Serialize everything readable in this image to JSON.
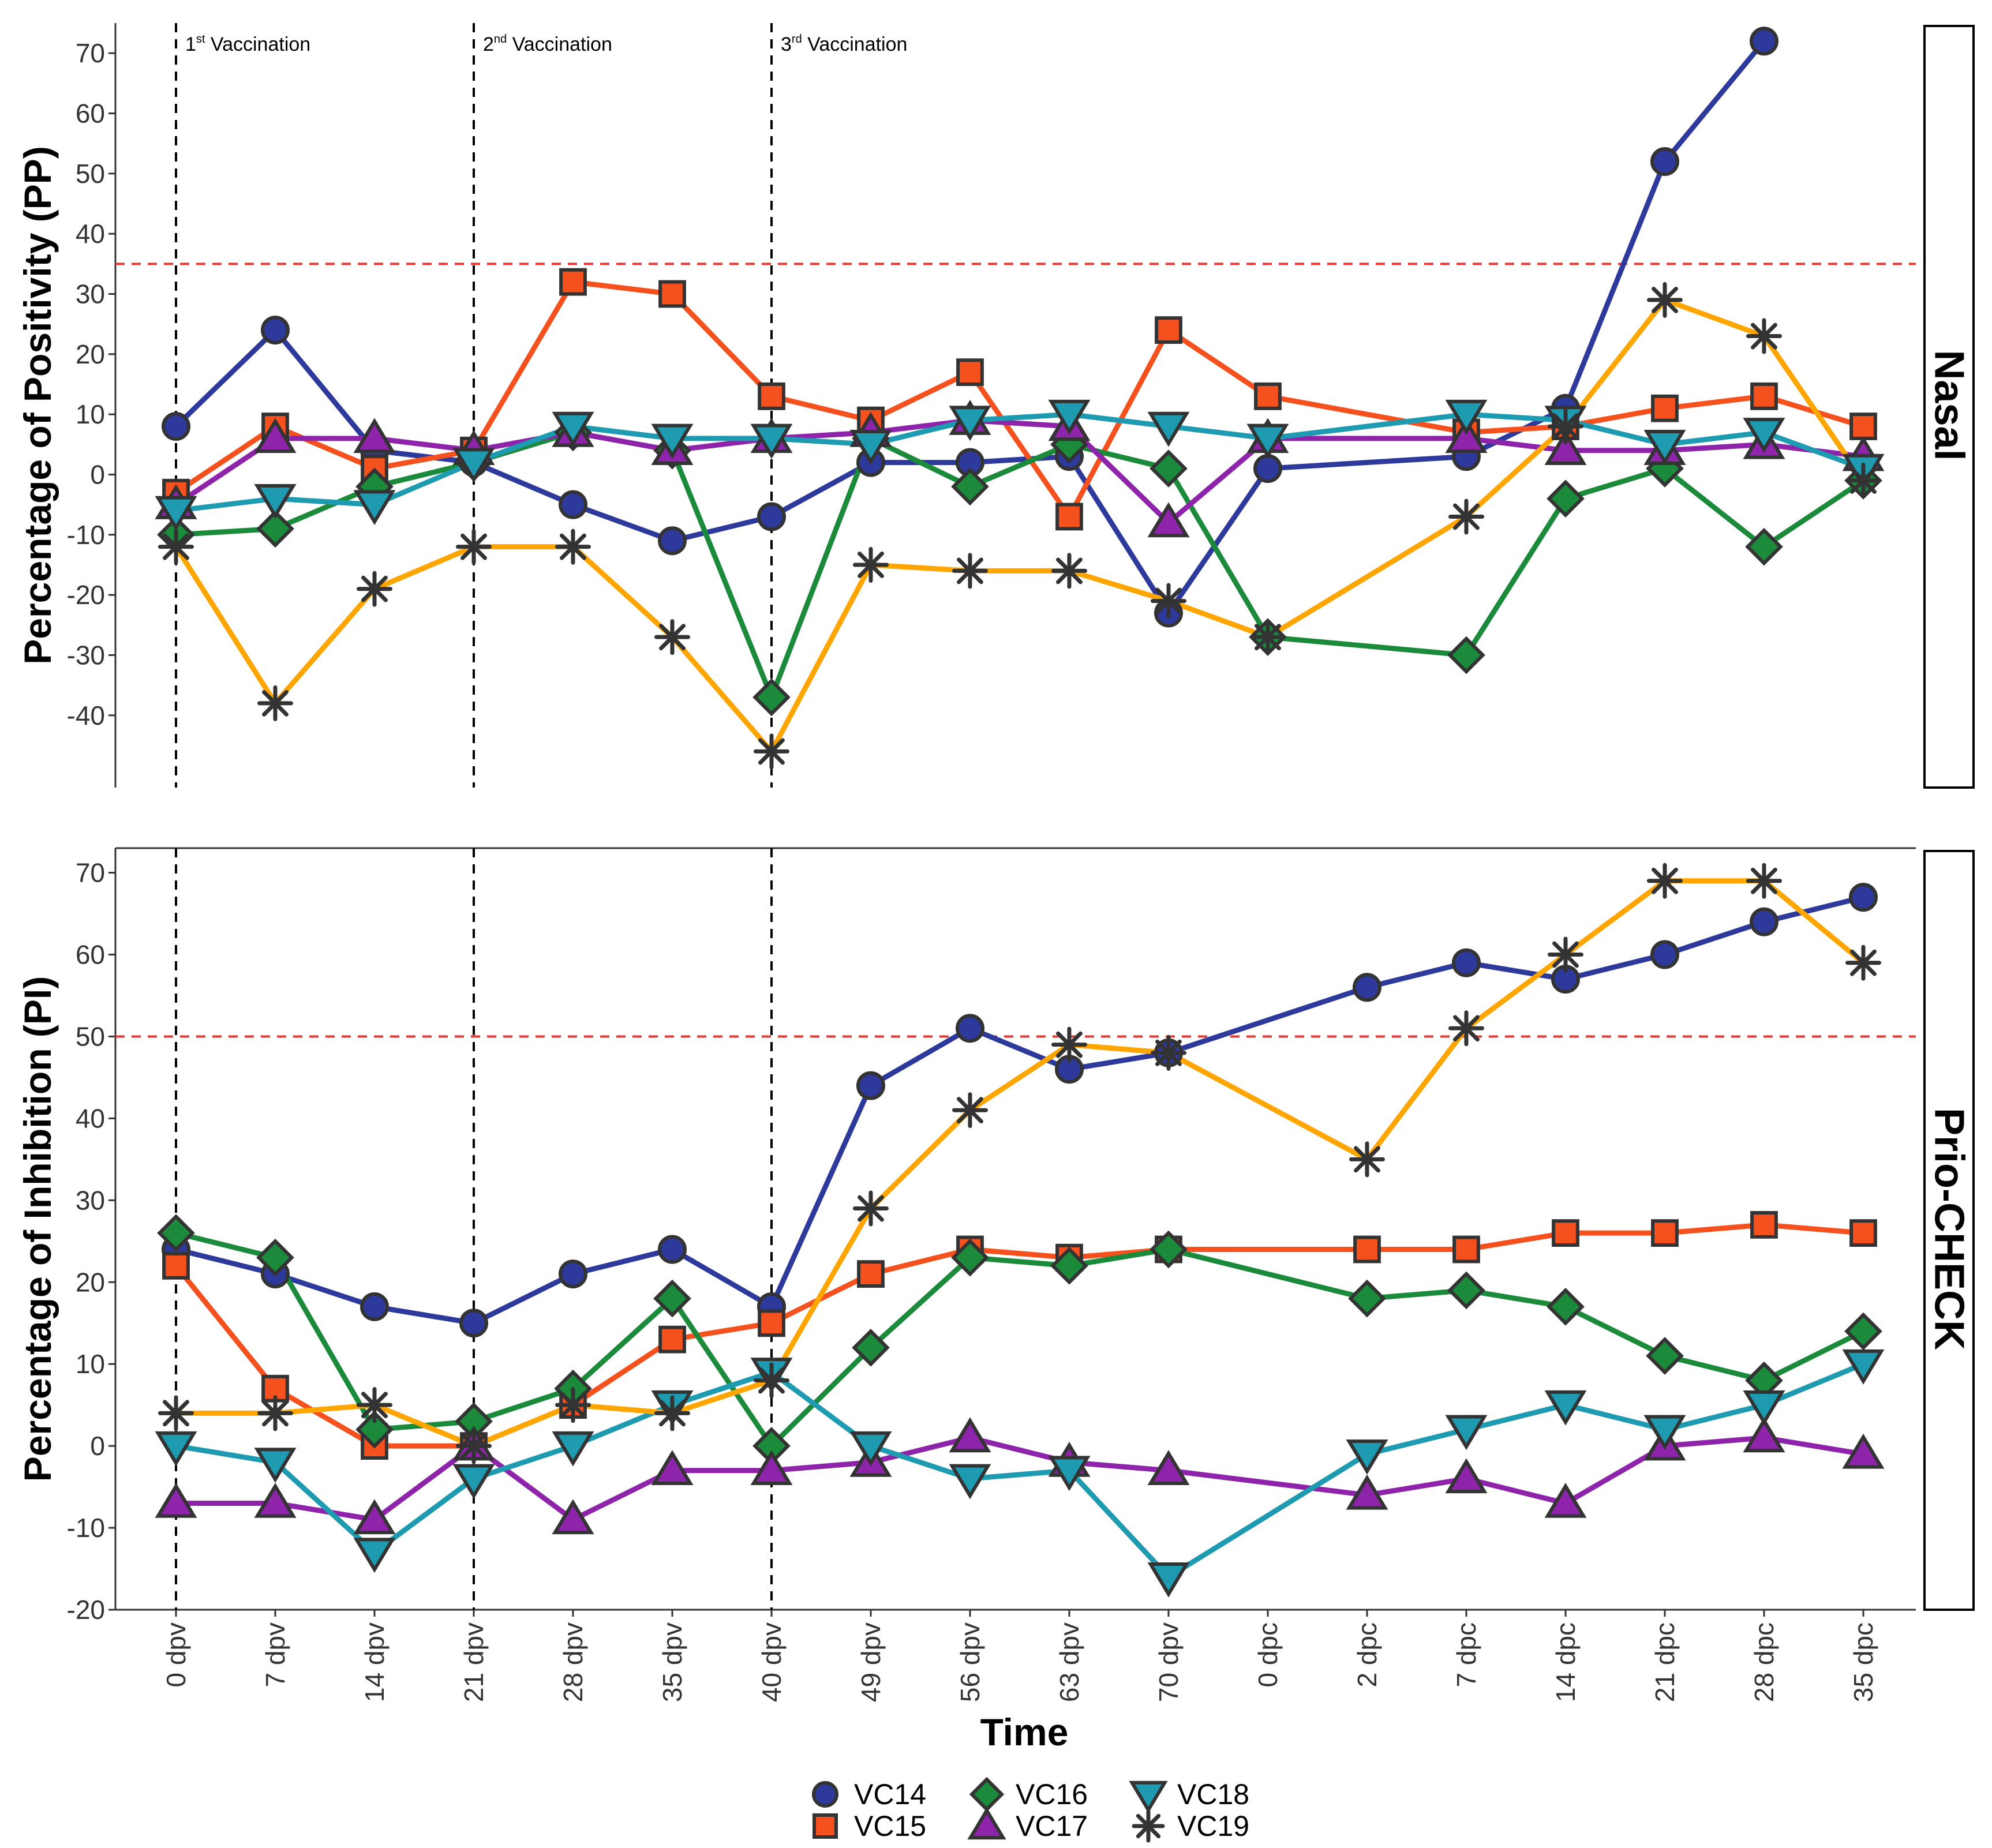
{
  "chart_data": {
    "type": "line",
    "xlabel": "Time",
    "x": [
      "0 dpv",
      "7 dpv",
      "14 dpv",
      "21 dpv",
      "28 dpv",
      "35 dpv",
      "40 dpv",
      "49 dpv",
      "56 dpv",
      "63 dpv",
      "70 dpv",
      "0 dpc",
      "2 dpc",
      "7 dpc",
      "14 dpc",
      "21 dpc",
      "28 dpc",
      "35 dpc"
    ],
    "vaccinations": [
      {
        "index": 0,
        "label": "1st Vaccination",
        "base": "1",
        "sup": "st",
        "rest": " Vaccination"
      },
      {
        "index": 3,
        "label": "2nd Vaccination",
        "base": "2",
        "sup": "nd",
        "rest": " Vaccination"
      },
      {
        "index": 6,
        "label": "3rd Vaccination",
        "base": "3",
        "sup": "rd",
        "rest": " Vaccination"
      }
    ],
    "series_styles": [
      {
        "name": "VC14",
        "color": "#2E3A9B",
        "shape": "circle"
      },
      {
        "name": "VC15",
        "color": "#F4511E",
        "shape": "square"
      },
      {
        "name": "VC16",
        "color": "#1B8A3A",
        "shape": "diamond"
      },
      {
        "name": "VC17",
        "color": "#8E24AA",
        "shape": "triangle-up"
      },
      {
        "name": "VC18",
        "color": "#1E9BB0",
        "shape": "triangle-down"
      },
      {
        "name": "VC19",
        "color": "#FFA500",
        "shape": "asterisk"
      }
    ],
    "panels": [
      {
        "strip": "Nasal",
        "ylabel": "Percentage of Positivity (PP)",
        "ylim": [
          -52,
          75
        ],
        "yticks": [
          -40,
          -30,
          -20,
          -10,
          0,
          10,
          20,
          30,
          40,
          50,
          60,
          70
        ],
        "threshold": 35,
        "series": [
          {
            "name": "VC14",
            "values": [
              8,
              24,
              4,
              2,
              -5,
              -11,
              -7,
              2,
              2,
              3,
              -23,
              1,
              null,
              3,
              11,
              52,
              72,
              null
            ]
          },
          {
            "name": "VC15",
            "values": [
              -3,
              8,
              1,
              4,
              32,
              30,
              13,
              9,
              17,
              -7,
              24,
              13,
              null,
              7,
              8,
              11,
              13,
              8
            ]
          },
          {
            "name": "VC16",
            "values": [
              -10,
              -9,
              -2,
              2,
              7,
              4,
              -37,
              6,
              -2,
              5,
              1,
              -27,
              null,
              -30,
              -4,
              1,
              -12,
              -1
            ]
          },
          {
            "name": "VC17",
            "values": [
              -5,
              6,
              6,
              4,
              7,
              4,
              6,
              7,
              9,
              8,
              -8,
              6,
              null,
              6,
              4,
              4,
              5,
              3
            ]
          },
          {
            "name": "VC18",
            "values": [
              -6,
              -4,
              -5,
              2,
              8,
              6,
              6,
              5,
              9,
              10,
              8,
              6,
              null,
              10,
              9,
              5,
              7,
              1
            ]
          },
          {
            "name": "VC19",
            "values": [
              -12,
              -38,
              -19,
              -12,
              -12,
              -27,
              -46,
              -15,
              -16,
              -16,
              -21,
              -27,
              null,
              -7,
              8,
              29,
              23,
              -1
            ]
          }
        ]
      },
      {
        "strip": "Prio-CHECK",
        "ylabel": "Percentage of Inhibition (PI)",
        "ylim": [
          -20,
          73
        ],
        "yticks": [
          -20,
          -10,
          0,
          10,
          20,
          30,
          40,
          50,
          60,
          70
        ],
        "threshold": 50,
        "series": [
          {
            "name": "VC14",
            "values": [
              24,
              21,
              17,
              15,
              21,
              24,
              17,
              44,
              51,
              46,
              48,
              null,
              56,
              59,
              57,
              60,
              64,
              67
            ]
          },
          {
            "name": "VC15",
            "values": [
              22,
              7,
              0,
              0,
              5,
              13,
              15,
              21,
              24,
              23,
              24,
              null,
              24,
              24,
              26,
              26,
              27,
              26
            ]
          },
          {
            "name": "VC16",
            "values": [
              26,
              23,
              2,
              3,
              7,
              18,
              0,
              12,
              23,
              22,
              24,
              null,
              18,
              19,
              17,
              11,
              8,
              14
            ]
          },
          {
            "name": "VC17",
            "values": [
              -7,
              -7,
              -9,
              0,
              -9,
              -3,
              -3,
              -2,
              1,
              -2,
              -3,
              null,
              -6,
              -4,
              -7,
              0,
              1,
              -1
            ]
          },
          {
            "name": "VC18",
            "values": [
              0,
              -2,
              -13,
              -4,
              0,
              5,
              9,
              0,
              -4,
              -3,
              -16,
              null,
              -1,
              2,
              5,
              2,
              5,
              10
            ]
          },
          {
            "name": "VC19",
            "values": [
              4,
              4,
              5,
              0,
              5,
              4,
              8,
              29,
              41,
              49,
              48,
              null,
              35,
              51,
              60,
              69,
              69,
              59
            ]
          }
        ]
      }
    ]
  }
}
